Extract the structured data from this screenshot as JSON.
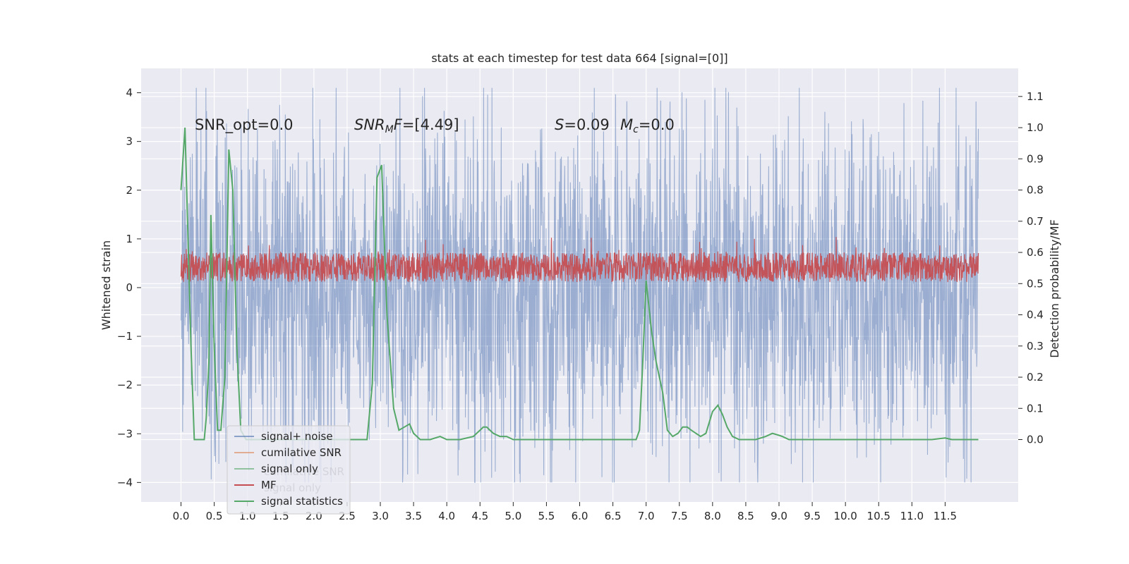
{
  "chart_data": {
    "type": "line",
    "title": "stats at each timestep for test data 664 [signal=[0]]",
    "xlabel": "",
    "ylabel": "Whitened strain",
    "y2label": "Detection probability/MF",
    "xlim": [
      -0.6,
      12.6
    ],
    "ylim": [
      -4.4,
      4.5
    ],
    "y2lim": [
      -0.2,
      1.19
    ],
    "x_ticks": [
      0.0,
      0.5,
      1.0,
      1.5,
      2.0,
      2.5,
      3.0,
      3.5,
      4.0,
      4.5,
      5.0,
      5.5,
      6.0,
      6.5,
      7.0,
      7.5,
      8.0,
      8.5,
      9.0,
      9.5,
      10.0,
      10.5,
      11.0,
      11.5
    ],
    "x_tick_labels": [
      "0.0",
      "0.5",
      "1.0",
      "1.5",
      "2.0",
      "2.5",
      "3.0",
      "3.5",
      "4.0",
      "4.5",
      "5.0",
      "5.5",
      "6.0",
      "6.5",
      "7.0",
      "7.5",
      "8.0",
      "8.5",
      "9.0",
      "9.5",
      "10.0",
      "10.5",
      "11.0",
      "11.5"
    ],
    "y_ticks": [
      -4,
      -3,
      -2,
      -1,
      0,
      1,
      2,
      3,
      4
    ],
    "y_tick_labels": [
      "−4",
      "−3",
      "−2",
      "−1",
      "0",
      "1",
      "2",
      "3",
      "4"
    ],
    "y2_ticks": [
      0.0,
      0.1,
      0.2,
      0.3,
      0.4,
      0.5,
      0.6,
      0.7,
      0.8,
      0.9,
      1.0,
      1.1
    ],
    "y2_tick_labels": [
      "0.0",
      "0.1",
      "0.2",
      "0.3",
      "0.4",
      "0.5",
      "0.6",
      "0.7",
      "0.8",
      "0.9",
      "1.0",
      "1.1"
    ],
    "grid": true,
    "legend_placement": "lower-left",
    "annotations": [
      {
        "text": "SNR_opt=0.0"
      },
      {
        "text_parts": [
          {
            "t": "SNR",
            "i": true
          },
          {
            "t": "M",
            "i": true,
            "sub": true
          },
          {
            "t": "F",
            "i": true
          },
          {
            "t": "=[4.49]"
          }
        ]
      },
      {
        "text_parts": [
          {
            "t": "S",
            "i": true
          },
          {
            "t": "=0.09"
          }
        ]
      },
      {
        "text_parts": [
          {
            "t": "M",
            "i": true
          },
          {
            "t": "c",
            "i": true,
            "sub": true
          },
          {
            "t": "=0.0"
          }
        ]
      }
    ],
    "legend": [
      {
        "label": "signal+ noise",
        "color": "#4c72b0"
      },
      {
        "label": "cumilative SNR",
        "color": "#dd8452"
      },
      {
        "label": "signal only",
        "color": "#55a868"
      },
      {
        "label": "MF",
        "color": "#c44e52"
      },
      {
        "label": "signal statistics",
        "color": "#55a868"
      }
    ],
    "ghost_legend": [
      {
        "label": "cumilative SNR"
      },
      {
        "label": "signal only"
      }
    ],
    "series": [
      {
        "name": "signal+ noise",
        "axis": "left",
        "style": "dense-noise",
        "x_range": [
          0.0,
          12.0
        ],
        "color": "#4c72b0",
        "band_min": -2.1,
        "band_max": 2.0,
        "peak_max": 4.1,
        "peak_min": -4.0
      },
      {
        "name": "MF",
        "axis": "right",
        "style": "dense-noise",
        "x_range": [
          0.0,
          12.0
        ],
        "color": "#c44e52",
        "band_min": 0.505,
        "band_max": 0.6,
        "peak_max": 0.65
      },
      {
        "name": "signal statistics",
        "axis": "right",
        "color": "#55a868",
        "x": [
          0.0,
          0.06,
          0.15,
          0.2,
          0.22,
          0.35,
          0.38,
          0.42,
          0.45,
          0.5,
          0.55,
          0.6,
          0.66,
          0.72,
          0.78,
          0.84,
          0.9,
          0.98,
          1.1,
          2.5,
          2.8,
          2.88,
          2.95,
          3.02,
          3.1,
          3.2,
          3.28,
          3.36,
          3.44,
          3.5,
          3.6,
          3.75,
          3.9,
          4.0,
          4.2,
          4.4,
          4.5,
          4.55,
          4.6,
          4.7,
          4.8,
          4.9,
          5.0,
          5.2,
          5.6,
          6.0,
          6.4,
          6.6,
          6.85,
          6.9,
          6.95,
          7.0,
          7.08,
          7.15,
          7.25,
          7.32,
          7.4,
          7.48,
          7.55,
          7.62,
          7.68,
          7.75,
          7.82,
          7.9,
          8.0,
          8.08,
          8.15,
          8.22,
          8.3,
          8.4,
          8.5,
          8.65,
          8.8,
          8.9,
          8.98,
          9.05,
          9.15,
          9.4,
          9.6,
          9.8,
          10.0,
          10.3,
          10.6,
          11.0,
          11.3,
          11.5,
          11.6,
          11.8,
          12.0
        ],
        "y": [
          0.8,
          1.0,
          0.3,
          0.0,
          0.0,
          0.0,
          0.07,
          0.25,
          0.72,
          0.3,
          0.03,
          0.03,
          0.2,
          0.93,
          0.8,
          0.3,
          0.03,
          0.0,
          0.0,
          0.0,
          0.0,
          0.18,
          0.84,
          0.88,
          0.4,
          0.1,
          0.03,
          0.04,
          0.05,
          0.02,
          0.0,
          0.0,
          0.01,
          0.0,
          0.0,
          0.01,
          0.03,
          0.04,
          0.04,
          0.02,
          0.01,
          0.01,
          0.0,
          0.0,
          0.0,
          0.0,
          0.0,
          0.0,
          0.0,
          0.03,
          0.25,
          0.51,
          0.35,
          0.25,
          0.15,
          0.03,
          0.01,
          0.02,
          0.04,
          0.04,
          0.03,
          0.02,
          0.01,
          0.02,
          0.09,
          0.11,
          0.08,
          0.04,
          0.01,
          0.0,
          0.0,
          0.0,
          0.01,
          0.02,
          0.015,
          0.01,
          0.0,
          0.0,
          0.0,
          0.0,
          0.0,
          0.0,
          0.0,
          0.0,
          0.0,
          0.005,
          0.0,
          0.0,
          0.0
        ]
      }
    ]
  }
}
